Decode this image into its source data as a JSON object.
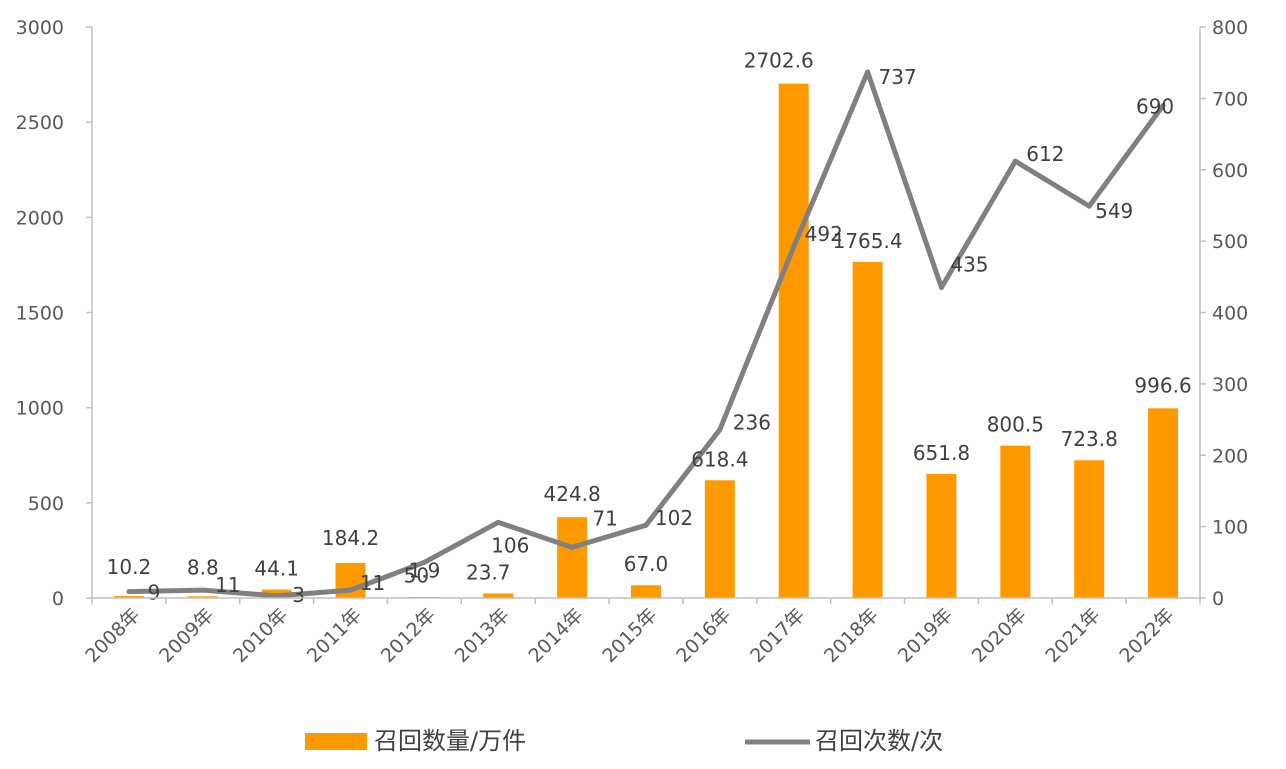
{
  "chart_data": {
    "type": "bar",
    "title": "",
    "categories": [
      "2008年",
      "2009年",
      "2010年",
      "2011年",
      "2012年",
      "2013年",
      "2014年",
      "2015年",
      "2016年",
      "2017年",
      "2018年",
      "2019年",
      "2020年",
      "2021年",
      "2022年"
    ],
    "series": [
      {
        "name": "召回数量/万件",
        "type": "bar",
        "axis": "left",
        "color": "#FF9900",
        "values": [
          10.2,
          8.8,
          44.1,
          184.2,
          1.9,
          23.7,
          424.8,
          67.0,
          618.4,
          2702.6,
          1765.4,
          651.8,
          800.5,
          723.8,
          996.6
        ],
        "labels": [
          "10.2",
          "8.8",
          "44.1",
          "184.2",
          "1.9",
          "23.7",
          "424.8",
          "67.0",
          "618.4",
          "2702.6",
          "1765.4",
          "651.8",
          "800.5",
          "723.8",
          "996.6"
        ]
      },
      {
        "name": "召回次数/次",
        "type": "line",
        "axis": "right",
        "color": "#808080",
        "values": [
          9,
          11,
          3,
          11,
          50,
          106,
          71,
          102,
          236,
          492,
          737,
          435,
          612,
          549,
          690
        ],
        "labels": [
          "9",
          "11",
          "3",
          "11",
          "50",
          "106",
          "71",
          "102",
          "236",
          "492",
          "737",
          "435",
          "612",
          "549",
          "690"
        ]
      }
    ],
    "y_left": {
      "min": 0,
      "max": 3000,
      "ticks": [
        "0",
        "500",
        "1000",
        "1500",
        "2000",
        "2500",
        "3000"
      ]
    },
    "y_right": {
      "min": 0,
      "max": 800,
      "ticks": [
        "0",
        "100",
        "200",
        "300",
        "400",
        "500",
        "600",
        "700",
        "800"
      ]
    },
    "xlabel": "",
    "ylabel": "",
    "grid": false,
    "legend": "bottom"
  }
}
